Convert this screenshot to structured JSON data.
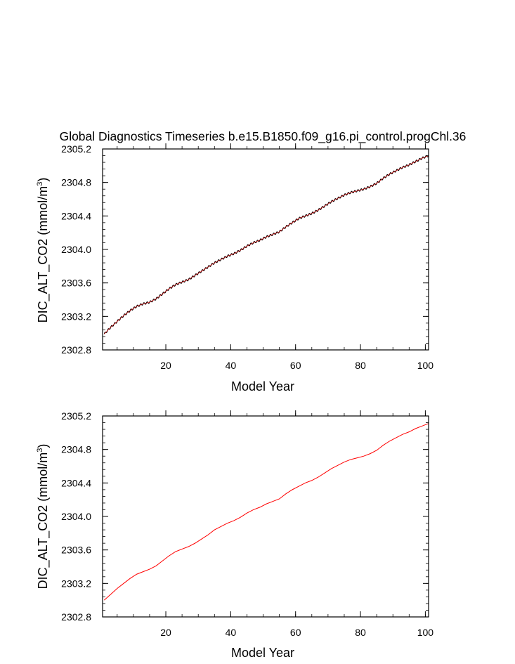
{
  "title": "Global Diagnostics Timeseries b.e15.B1850.f09_g16.pi_control.progChl.36",
  "chart_data": [
    {
      "type": "line",
      "xlabel": "Model Year",
      "ylabel_main": "DIC_ALT_CO2 (mmol/m",
      "ylabel_sup": "3",
      "ylabel_end": ")",
      "xlim": [
        0.5,
        101
      ],
      "ylim": [
        2302.8,
        2305.2
      ],
      "xticks": [
        "20",
        "40",
        "60",
        "80",
        "100"
      ],
      "yticks": [
        "2302.8",
        "2303.2",
        "2303.6",
        "2304.0",
        "2304.4",
        "2304.8",
        "2305.2"
      ],
      "grid": false,
      "series": [
        {
          "style": "monthly",
          "color": "#000000",
          "overlay_color": "#ff0000",
          "seasonal_amplitude": 0.012,
          "x": [
            1,
            3,
            5,
            7,
            9,
            11,
            13,
            15,
            17,
            19,
            21,
            23,
            25,
            27,
            29,
            31,
            33,
            35,
            37,
            39,
            41,
            43,
            45,
            47,
            49,
            51,
            53,
            55,
            57,
            59,
            61,
            63,
            65,
            67,
            69,
            71,
            73,
            75,
            77,
            79,
            81,
            83,
            85,
            87,
            89,
            91,
            93,
            95,
            97,
            99,
            101
          ],
          "values": [
            2302.99,
            2303.07,
            2303.14,
            2303.21,
            2303.27,
            2303.32,
            2303.35,
            2303.37,
            2303.41,
            2303.47,
            2303.53,
            2303.58,
            2303.61,
            2303.64,
            2303.69,
            2303.74,
            2303.79,
            2303.84,
            2303.88,
            2303.92,
            2303.95,
            2303.99,
            2304.04,
            2304.08,
            2304.11,
            2304.15,
            2304.18,
            2304.21,
            2304.27,
            2304.32,
            2304.37,
            2304.4,
            2304.43,
            2304.47,
            2304.52,
            2304.57,
            2304.61,
            2304.65,
            2304.68,
            2304.7,
            2304.72,
            2304.75,
            2304.79,
            2304.85,
            2304.9,
            2304.94,
            2304.98,
            2305.01,
            2305.05,
            2305.09,
            2305.12
          ]
        }
      ]
    },
    {
      "type": "line",
      "xlabel": "Model Year",
      "ylabel_main": "DIC_ALT_CO2 (mmol/m",
      "ylabel_sup": "3",
      "ylabel_end": ")",
      "xlim": [
        0.5,
        101
      ],
      "ylim": [
        2302.8,
        2305.2
      ],
      "xticks": [
        "20",
        "40",
        "60",
        "80",
        "100"
      ],
      "yticks": [
        "2302.8",
        "2303.2",
        "2303.6",
        "2304.0",
        "2304.4",
        "2304.8",
        "2305.2"
      ],
      "grid": false,
      "series": [
        {
          "style": "annual",
          "color": "#ff0000",
          "x": [
            1,
            3,
            5,
            7,
            9,
            11,
            13,
            15,
            17,
            19,
            21,
            23,
            25,
            27,
            29,
            31,
            33,
            35,
            37,
            39,
            41,
            43,
            45,
            47,
            49,
            51,
            53,
            55,
            57,
            59,
            61,
            63,
            65,
            67,
            69,
            71,
            73,
            75,
            77,
            79,
            81,
            83,
            85,
            87,
            89,
            91,
            93,
            95,
            97,
            99,
            101
          ],
          "values": [
            2303.0,
            2303.07,
            2303.14,
            2303.2,
            2303.26,
            2303.31,
            2303.34,
            2303.37,
            2303.41,
            2303.47,
            2303.53,
            2303.58,
            2303.61,
            2303.64,
            2303.68,
            2303.73,
            2303.78,
            2303.84,
            2303.88,
            2303.92,
            2303.95,
            2303.99,
            2304.04,
            2304.08,
            2304.11,
            2304.15,
            2304.18,
            2304.21,
            2304.27,
            2304.32,
            2304.36,
            2304.4,
            2304.43,
            2304.47,
            2304.52,
            2304.57,
            2304.61,
            2304.65,
            2304.68,
            2304.7,
            2304.72,
            2304.75,
            2304.79,
            2304.85,
            2304.9,
            2304.94,
            2304.98,
            2305.01,
            2305.05,
            2305.08,
            2305.11
          ]
        }
      ]
    }
  ]
}
